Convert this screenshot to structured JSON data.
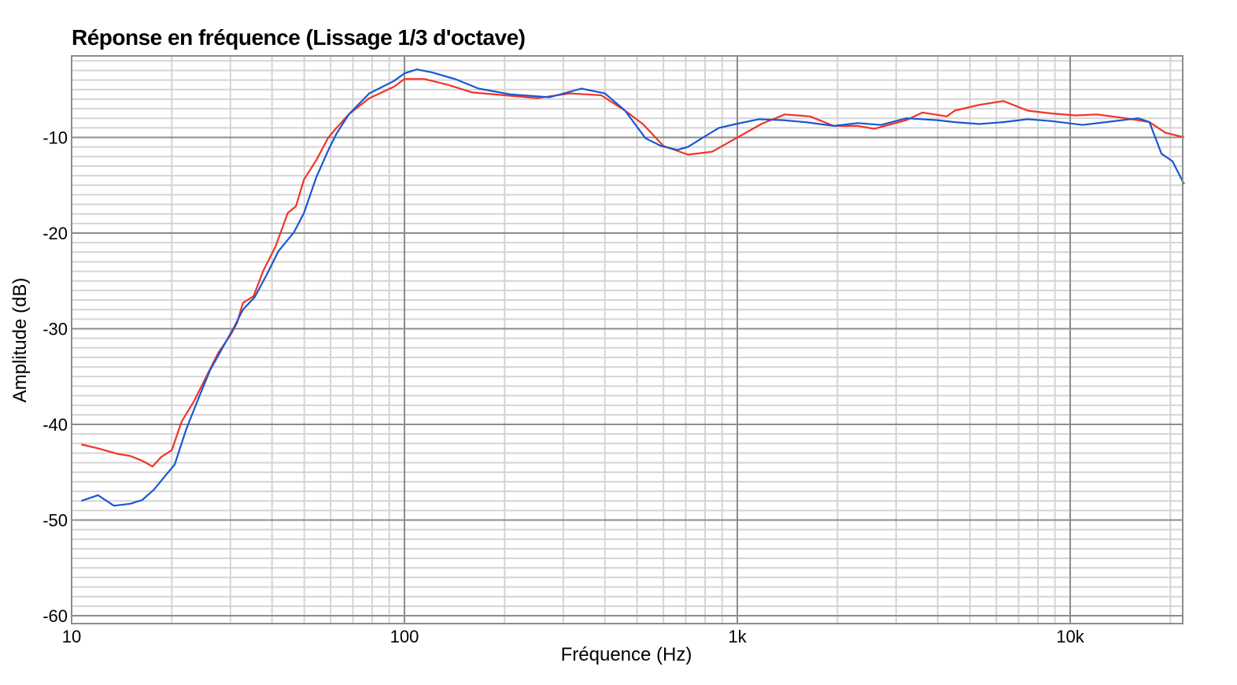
{
  "title": "Réponse en fréquence (Lissage 1/3 d'octave)",
  "colors": {
    "series_red": "#f2332a",
    "series_blue": "#1a58d0",
    "grid_major": "#8c8c8c",
    "grid_minor": "#d4d4d4",
    "frame": "#8c8c8c"
  },
  "chart_data": {
    "type": "line",
    "title": "Réponse en fréquence (Lissage 1/3 d'octave)",
    "xlabel": "Fréquence (Hz)",
    "ylabel": "Amplitude (dB)",
    "xscale": "log",
    "xlim": [
      10,
      22000
    ],
    "ylim": [
      -60.8,
      -1.5
    ],
    "x_ticks": [
      10,
      100,
      1000,
      10000
    ],
    "x_tick_labels": [
      "10",
      "100",
      "1k",
      "10k"
    ],
    "y_ticks": [
      -10,
      -20,
      -30,
      -40,
      -50,
      -60
    ],
    "y_tick_labels": [
      "-10",
      "-20",
      "-30",
      "-40",
      "-50",
      "-60"
    ],
    "grid": true,
    "legend": null,
    "series": [
      {
        "name": "red",
        "color": "#f2332a",
        "points": [
          [
            10.7,
            -42.1
          ],
          [
            12.0,
            -42.5
          ],
          [
            13.8,
            -43.1
          ],
          [
            15.0,
            -43.3
          ],
          [
            16.3,
            -43.8
          ],
          [
            17.5,
            -44.4
          ],
          [
            18.6,
            -43.4
          ],
          [
            20.0,
            -42.7
          ],
          [
            21.4,
            -39.7
          ],
          [
            23.3,
            -37.6
          ],
          [
            25.4,
            -35.0
          ],
          [
            27.6,
            -32.5
          ],
          [
            30.1,
            -30.6
          ],
          [
            31.4,
            -29.4
          ],
          [
            32.7,
            -27.3
          ],
          [
            35.2,
            -26.6
          ],
          [
            37.7,
            -23.9
          ],
          [
            41.0,
            -21.4
          ],
          [
            44.6,
            -17.9
          ],
          [
            47.2,
            -17.2
          ],
          [
            49.9,
            -14.4
          ],
          [
            54.3,
            -12.4
          ],
          [
            59.1,
            -10.0
          ],
          [
            62.5,
            -9.0
          ],
          [
            68.0,
            -7.6
          ],
          [
            78.4,
            -5.9
          ],
          [
            93.0,
            -4.7
          ],
          [
            100,
            -3.9
          ],
          [
            115,
            -3.9
          ],
          [
            135,
            -4.5
          ],
          [
            160,
            -5.3
          ],
          [
            200,
            -5.6
          ],
          [
            250,
            -5.9
          ],
          [
            315,
            -5.4
          ],
          [
            390,
            -5.6
          ],
          [
            460,
            -7.2
          ],
          [
            520,
            -8.6
          ],
          [
            600,
            -10.9
          ],
          [
            710,
            -11.8
          ],
          [
            840,
            -11.5
          ],
          [
            990,
            -10.1
          ],
          [
            1180,
            -8.6
          ],
          [
            1390,
            -7.6
          ],
          [
            1650,
            -7.8
          ],
          [
            1950,
            -8.8
          ],
          [
            2300,
            -8.8
          ],
          [
            2580,
            -9.1
          ],
          [
            3220,
            -8.2
          ],
          [
            3600,
            -7.4
          ],
          [
            4260,
            -7.8
          ],
          [
            4500,
            -7.2
          ],
          [
            5330,
            -6.6
          ],
          [
            6300,
            -6.2
          ],
          [
            7450,
            -7.2
          ],
          [
            8800,
            -7.5
          ],
          [
            10400,
            -7.7
          ],
          [
            12000,
            -7.6
          ],
          [
            14700,
            -8.0
          ],
          [
            17300,
            -8.4
          ],
          [
            19300,
            -9.5
          ],
          [
            22000,
            -10.0
          ]
        ]
      },
      {
        "name": "blue",
        "color": "#1a58d0",
        "points": [
          [
            10.7,
            -48.0
          ],
          [
            12.0,
            -47.4
          ],
          [
            13.4,
            -48.5
          ],
          [
            15.0,
            -48.3
          ],
          [
            16.3,
            -47.9
          ],
          [
            17.7,
            -46.8
          ],
          [
            19.3,
            -45.2
          ],
          [
            20.4,
            -44.2
          ],
          [
            22.1,
            -40.5
          ],
          [
            24.1,
            -37.2
          ],
          [
            26.1,
            -34.3
          ],
          [
            28.4,
            -32.0
          ],
          [
            30.8,
            -29.8
          ],
          [
            32.7,
            -28.0
          ],
          [
            35.5,
            -26.7
          ],
          [
            38.5,
            -24.4
          ],
          [
            41.8,
            -21.9
          ],
          [
            46.6,
            -19.9
          ],
          [
            49.9,
            -17.9
          ],
          [
            54.3,
            -14.2
          ],
          [
            59.1,
            -11.3
          ],
          [
            62.5,
            -9.6
          ],
          [
            68.0,
            -7.6
          ],
          [
            78.4,
            -5.4
          ],
          [
            93.0,
            -4.1
          ],
          [
            100,
            -3.3
          ],
          [
            109,
            -2.9
          ],
          [
            121,
            -3.2
          ],
          [
            142,
            -3.9
          ],
          [
            167,
            -4.9
          ],
          [
            208,
            -5.5
          ],
          [
            273,
            -5.8
          ],
          [
            340,
            -4.9
          ],
          [
            400,
            -5.4
          ],
          [
            460,
            -7.2
          ],
          [
            530,
            -10.1
          ],
          [
            590,
            -10.9
          ],
          [
            660,
            -11.3
          ],
          [
            710,
            -11.0
          ],
          [
            790,
            -10.0
          ],
          [
            880,
            -9.0
          ],
          [
            990,
            -8.6
          ],
          [
            1160,
            -8.1
          ],
          [
            1370,
            -8.2
          ],
          [
            1600,
            -8.4
          ],
          [
            1950,
            -8.8
          ],
          [
            2300,
            -8.5
          ],
          [
            2700,
            -8.7
          ],
          [
            3220,
            -8.0
          ],
          [
            3990,
            -8.2
          ],
          [
            4500,
            -8.4
          ],
          [
            5330,
            -8.6
          ],
          [
            6300,
            -8.4
          ],
          [
            7450,
            -8.1
          ],
          [
            8800,
            -8.3
          ],
          [
            10900,
            -8.7
          ],
          [
            12800,
            -8.4
          ],
          [
            16000,
            -8.0
          ],
          [
            17300,
            -8.4
          ],
          [
            18800,
            -11.7
          ],
          [
            20300,
            -12.5
          ],
          [
            22000,
            -14.9
          ]
        ]
      }
    ]
  },
  "axis_text": {
    "xlabel": "Fréquence (Hz)",
    "ylabel": "Amplitude (dB)"
  }
}
